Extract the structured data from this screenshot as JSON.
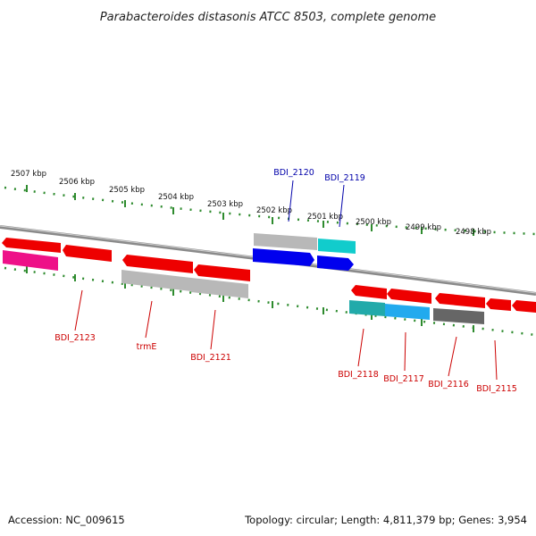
{
  "title": "Parabacteroides distasonis ATCC 8503, complete genome",
  "footer": {
    "accession": "Accession: NC_009615",
    "topology": "Topology: circular; Length: 4,811,379 bp; Genes: 3,954"
  },
  "colors": {
    "backbone": "#8a8a8a",
    "tick": "#2e8b2e",
    "label_top": "#0000aa",
    "label_bottom": "#cc0000",
    "red": "#ee0000",
    "grey": "#b8b8b8",
    "blue": "#0000ee",
    "cyan": "#11cccc",
    "magenta": "#ee1188",
    "dark_grey": "#666666",
    "teal": "#22aaaa",
    "light_blue": "#22aaee"
  },
  "ticks": [
    {
      "label": "2507 kbp"
    },
    {
      "label": "2506 kbp"
    },
    {
      "label": "2505 kbp"
    },
    {
      "label": "2504 kbp"
    },
    {
      "label": "2503 kbp"
    },
    {
      "label": "2502 kbp"
    },
    {
      "label": "2501 kbp"
    },
    {
      "label": "2500 kbp"
    },
    {
      "label": "2499 kbp"
    },
    {
      "label": "2498 kbp"
    }
  ],
  "genes_top": [
    {
      "label": "BDI_2120"
    },
    {
      "label": "BDI_2119"
    }
  ],
  "genes_bottom": [
    {
      "label": "BDI_2123"
    },
    {
      "label": "trmE"
    },
    {
      "label": "BDI_2121"
    },
    {
      "label": "BDI_2118"
    },
    {
      "label": "BDI_2117"
    },
    {
      "label": "BDI_2116"
    },
    {
      "label": "BDI_2115"
    }
  ]
}
